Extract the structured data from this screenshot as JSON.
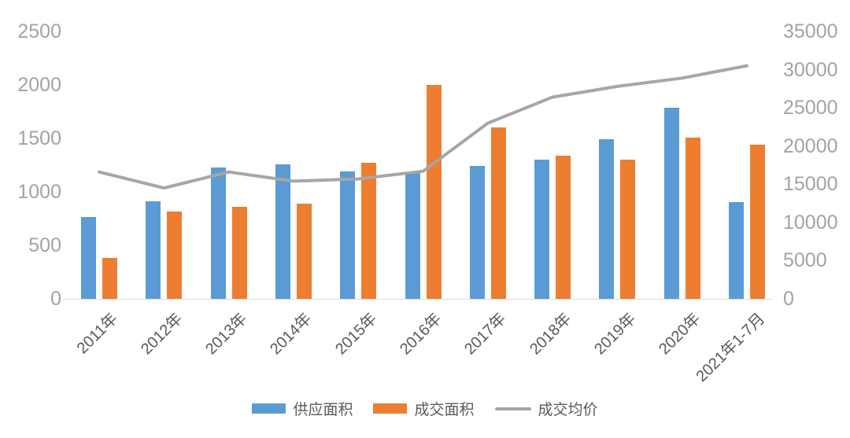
{
  "chart_data": {
    "type": "bar",
    "title": "",
    "categories": [
      "2011年",
      "2012年",
      "2013年",
      "2014年",
      "2015年",
      "2016年",
      "2017年",
      "2018年",
      "2019年",
      "2020年",
      "2021年1-7月"
    ],
    "series": [
      {
        "id": "supply-area",
        "name": "供应面积",
        "type": "bar",
        "axis": "left",
        "color": "#5B9BD5",
        "values": [
          765,
          910,
          1225,
          1255,
          1190,
          1175,
          1245,
          1300,
          1490,
          1790,
          905
        ]
      },
      {
        "id": "transaction-area",
        "name": "成交面积",
        "type": "bar",
        "axis": "left",
        "color": "#ED7D31",
        "values": [
          385,
          815,
          860,
          890,
          1270,
          2000,
          1600,
          1335,
          1300,
          1510,
          1440
        ]
      },
      {
        "id": "avg-price",
        "name": "成交均价",
        "type": "line",
        "axis": "right",
        "color": "#A6A6A6",
        "values": [
          16600,
          14500,
          16600,
          15400,
          15700,
          16700,
          23000,
          26400,
          27800,
          28900,
          30500
        ]
      }
    ],
    "left_axis": {
      "min": 0,
      "max": 2500,
      "step": 500,
      "ticks": [
        "0",
        "500",
        "1000",
        "1500",
        "2000",
        "2500"
      ]
    },
    "right_axis": {
      "min": 0,
      "max": 35000,
      "step": 5000,
      "ticks": [
        "0",
        "5000",
        "10000",
        "15000",
        "20000",
        "25000",
        "30000",
        "35000"
      ]
    },
    "legend": [
      "供应面积",
      "成交面积",
      "成交均价"
    ],
    "legend_position": "bottom",
    "grid": false
  },
  "colors": {
    "background": "#FFFFFF",
    "axis_tick_text": "#A3A3A3",
    "category_text": "#595959",
    "legend_text": "#595959",
    "axis_line": "#D9D9D9",
    "bar_blue": "#5B9BD5",
    "bar_orange": "#ED7D31",
    "line_gray": "#A6A6A6"
  }
}
